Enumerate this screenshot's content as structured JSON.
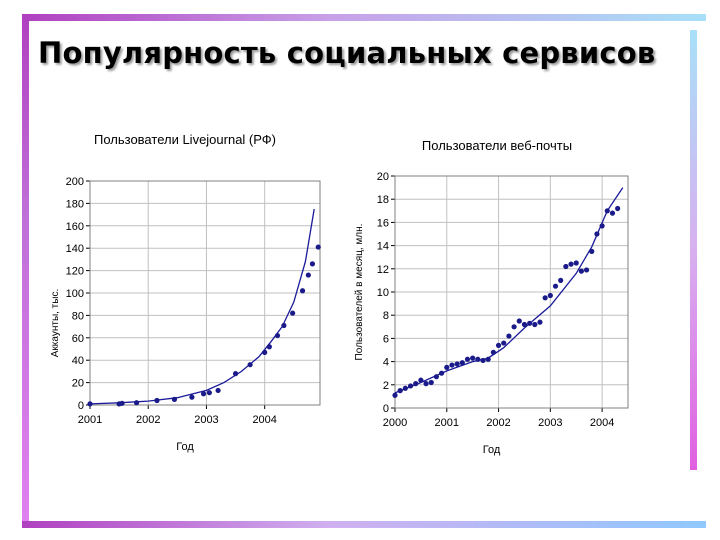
{
  "slide": {
    "title": "Популярность социальных сервисов"
  },
  "chart_data": [
    {
      "type": "scatter",
      "title": "Пользователи Livejournal (РФ)",
      "xlabel": "Год",
      "ylabel": "Аккаунты, тыс.",
      "xlim": [
        2001,
        2004.95
      ],
      "ylim": [
        0,
        200
      ],
      "xticks": [
        "2001",
        "2002",
        "2003",
        "2004"
      ],
      "yticks": [
        0,
        20,
        40,
        60,
        80,
        100,
        120,
        140,
        160,
        180,
        200
      ],
      "grid": true,
      "points": [
        [
          2001.0,
          1
        ],
        [
          2001.5,
          1
        ],
        [
          2001.55,
          1.5
        ],
        [
          2001.8,
          2
        ],
        [
          2002.15,
          4
        ],
        [
          2002.45,
          5
        ],
        [
          2002.75,
          7
        ],
        [
          2002.95,
          10
        ],
        [
          2003.05,
          11
        ],
        [
          2003.2,
          13
        ],
        [
          2003.5,
          28
        ],
        [
          2003.75,
          36
        ],
        [
          2004.0,
          47
        ],
        [
          2004.08,
          52
        ],
        [
          2004.22,
          62
        ],
        [
          2004.33,
          71
        ],
        [
          2004.48,
          82
        ],
        [
          2004.65,
          102
        ],
        [
          2004.75,
          116
        ],
        [
          2004.82,
          126
        ],
        [
          2004.92,
          141
        ]
      ],
      "fit_line": [
        [
          2001.0,
          1
        ],
        [
          2001.5,
          2
        ],
        [
          2002.0,
          3.5
        ],
        [
          2002.5,
          6.5
        ],
        [
          2003.0,
          13
        ],
        [
          2003.3,
          20
        ],
        [
          2003.6,
          30
        ],
        [
          2003.9,
          43
        ],
        [
          2004.1,
          56
        ],
        [
          2004.3,
          70
        ],
        [
          2004.5,
          92
        ],
        [
          2004.7,
          128
        ],
        [
          2004.85,
          175
        ]
      ]
    },
    {
      "type": "scatter",
      "title": "Пользователи веб-почты",
      "xlabel": "Год",
      "ylabel": "Пользователей в месяц, млн.",
      "xlim": [
        2000,
        2004.5
      ],
      "ylim": [
        0,
        20
      ],
      "xticks": [
        "2000",
        "2001",
        "2002",
        "2003",
        "2004"
      ],
      "yticks": [
        0,
        2,
        4,
        6,
        8,
        10,
        12,
        14,
        16,
        18,
        20
      ],
      "grid": true,
      "points": [
        [
          2000.0,
          1.1
        ],
        [
          2000.1,
          1.5
        ],
        [
          2000.2,
          1.7
        ],
        [
          2000.3,
          1.9
        ],
        [
          2000.4,
          2.1
        ],
        [
          2000.5,
          2.4
        ],
        [
          2000.6,
          2.1
        ],
        [
          2000.7,
          2.2
        ],
        [
          2000.8,
          2.7
        ],
        [
          2000.9,
          3.0
        ],
        [
          2001.0,
          3.5
        ],
        [
          2001.1,
          3.7
        ],
        [
          2001.2,
          3.8
        ],
        [
          2001.3,
          3.9
        ],
        [
          2001.4,
          4.2
        ],
        [
          2001.5,
          4.3
        ],
        [
          2001.6,
          4.2
        ],
        [
          2001.7,
          4.1
        ],
        [
          2001.8,
          4.2
        ],
        [
          2001.9,
          4.8
        ],
        [
          2002.0,
          5.4
        ],
        [
          2002.1,
          5.6
        ],
        [
          2002.2,
          6.2
        ],
        [
          2002.3,
          7.0
        ],
        [
          2002.4,
          7.5
        ],
        [
          2002.5,
          7.2
        ],
        [
          2002.6,
          7.3
        ],
        [
          2002.7,
          7.2
        ],
        [
          2002.8,
          7.4
        ],
        [
          2002.9,
          9.5
        ],
        [
          2003.0,
          9.7
        ],
        [
          2003.1,
          10.5
        ],
        [
          2003.2,
          11.0
        ],
        [
          2003.3,
          12.2
        ],
        [
          2003.4,
          12.4
        ],
        [
          2003.5,
          12.5
        ],
        [
          2003.6,
          11.8
        ],
        [
          2003.7,
          11.9
        ],
        [
          2003.8,
          13.5
        ],
        [
          2003.9,
          15.0
        ],
        [
          2004.0,
          15.7
        ],
        [
          2004.1,
          17.0
        ],
        [
          2004.2,
          16.8
        ],
        [
          2004.3,
          17.2
        ]
      ],
      "fit_line": [
        [
          2000.0,
          1.3
        ],
        [
          2000.5,
          2.2
        ],
        [
          2001.0,
          3.2
        ],
        [
          2001.5,
          4.0
        ],
        [
          2001.8,
          4.3
        ],
        [
          2002.1,
          5.2
        ],
        [
          2002.5,
          6.9
        ],
        [
          2003.0,
          8.8
        ],
        [
          2003.5,
          11.6
        ],
        [
          2003.8,
          13.9
        ],
        [
          2004.1,
          17.0
        ],
        [
          2004.4,
          19.0
        ]
      ]
    }
  ]
}
